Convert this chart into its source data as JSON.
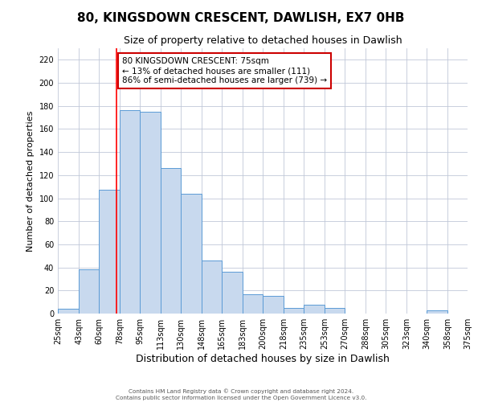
{
  "title": "80, KINGSDOWN CRESCENT, DAWLISH, EX7 0HB",
  "subtitle": "Size of property relative to detached houses in Dawlish",
  "xlabel": "Distribution of detached houses by size in Dawlish",
  "ylabel": "Number of detached properties",
  "bin_edges": [
    25,
    43,
    60,
    78,
    95,
    113,
    130,
    148,
    165,
    183,
    200,
    218,
    235,
    253,
    270,
    288,
    305,
    323,
    340,
    358,
    375
  ],
  "bar_heights": [
    4,
    38,
    107,
    176,
    175,
    126,
    104,
    46,
    36,
    17,
    15,
    5,
    8,
    5,
    0,
    0,
    0,
    0,
    3,
    0
  ],
  "bar_color": "#c8d9ee",
  "bar_edge_color": "#5b9bd5",
  "red_line_x": 75,
  "ylim": [
    0,
    230
  ],
  "yticks": [
    0,
    20,
    40,
    60,
    80,
    100,
    120,
    140,
    160,
    180,
    200,
    220
  ],
  "annotation_text": "80 KINGSDOWN CRESCENT: 75sqm\n← 13% of detached houses are smaller (111)\n86% of semi-detached houses are larger (739) →",
  "annotation_box_color": "#ffffff",
  "annotation_box_edge_color": "#cc0000",
  "footer_line1": "Contains HM Land Registry data © Crown copyright and database right 2024.",
  "footer_line2": "Contains public sector information licensed under the Open Government Licence v3.0.",
  "background_color": "#ffffff",
  "grid_color": "#c0c8d8",
  "title_fontsize": 11,
  "subtitle_fontsize": 9,
  "xlabel_fontsize": 9,
  "ylabel_fontsize": 8,
  "tick_fontsize": 7,
  "tick_labels": [
    "25sqm",
    "43sqm",
    "60sqm",
    "78sqm",
    "95sqm",
    "113sqm",
    "130sqm",
    "148sqm",
    "165sqm",
    "183sqm",
    "200sqm",
    "218sqm",
    "235sqm",
    "253sqm",
    "270sqm",
    "288sqm",
    "305sqm",
    "323sqm",
    "340sqm",
    "358sqm",
    "375sqm"
  ]
}
